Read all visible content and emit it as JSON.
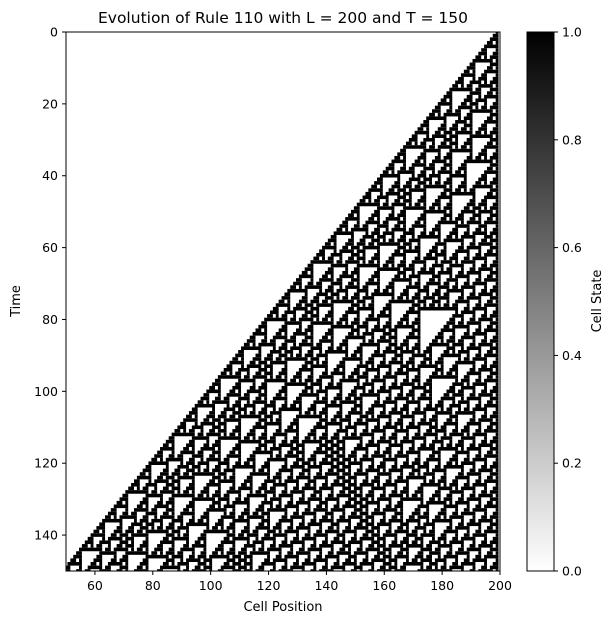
{
  "chart_data": {
    "type": "heatmap",
    "title": "Evolution of Rule 110 with L = 200 and T = 150",
    "xlabel": "Cell Position",
    "ylabel": "Time",
    "rule": 110,
    "L": 200,
    "T": 150,
    "initial_condition": "single live cell at the right edge (position 199)",
    "xlim": [
      50,
      200
    ],
    "ylim": [
      150,
      0
    ],
    "x_ticks": [
      60,
      80,
      100,
      120,
      140,
      160,
      180,
      200
    ],
    "y_ticks": [
      0,
      20,
      40,
      60,
      80,
      100,
      120,
      140
    ],
    "colormap": "gray_r",
    "colors": {
      "dead": "#ffffff",
      "alive": "#000000"
    },
    "colorbar": {
      "label": "Cell State",
      "range": [
        0.0,
        1.0
      ],
      "ticks": [
        "0.0",
        "0.2",
        "0.4",
        "0.6",
        "0.8",
        "1.0"
      ]
    }
  }
}
